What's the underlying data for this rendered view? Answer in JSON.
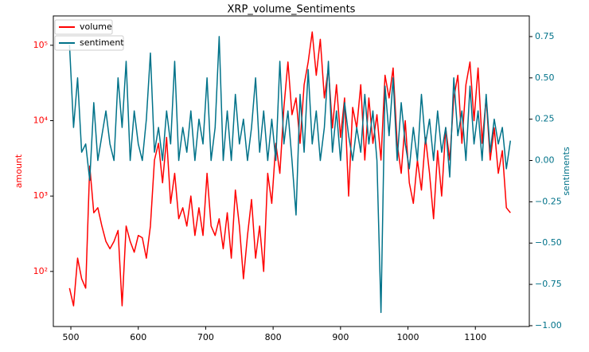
{
  "chart_data": {
    "type": "line",
    "title": "XRP_volume_Sentiments",
    "ylabel": "amount",
    "y2label": "sentiments",
    "yscale": "log",
    "grid": false,
    "legend": "upper left",
    "x": [
      498,
      504,
      510,
      516,
      522,
      528,
      534,
      540,
      546,
      552,
      558,
      564,
      570,
      576,
      582,
      588,
      594,
      600,
      606,
      612,
      618,
      624,
      630,
      636,
      642,
      648,
      654,
      660,
      666,
      672,
      678,
      684,
      690,
      696,
      702,
      708,
      714,
      720,
      726,
      732,
      738,
      744,
      750,
      756,
      762,
      768,
      774,
      780,
      786,
      792,
      798,
      804,
      810,
      816,
      822,
      828,
      834,
      840,
      846,
      852,
      858,
      864,
      870,
      876,
      882,
      888,
      894,
      900,
      906,
      912,
      918,
      924,
      930,
      936,
      942,
      948,
      954,
      960,
      966,
      972,
      978,
      984,
      990,
      996,
      1002,
      1008,
      1014,
      1020,
      1026,
      1032,
      1038,
      1044,
      1050,
      1056,
      1062,
      1068,
      1074,
      1080,
      1086,
      1092,
      1098,
      1104,
      1110,
      1116,
      1122,
      1128,
      1134,
      1140,
      1146,
      1152
    ],
    "series": [
      {
        "name": "volume",
        "color": "#ff0000",
        "values": [
          60,
          35,
          150,
          80,
          60,
          2500,
          600,
          700,
          400,
          250,
          200,
          250,
          350,
          35,
          400,
          250,
          180,
          300,
          280,
          150,
          400,
          3000,
          5000,
          1500,
          6000,
          800,
          2000,
          500,
          700,
          400,
          1000,
          300,
          700,
          300,
          2000,
          400,
          300,
          500,
          200,
          600,
          150,
          1200,
          400,
          80,
          300,
          900,
          150,
          400,
          100,
          2000,
          800,
          5000,
          2000,
          15000,
          60000,
          12000,
          20000,
          5000,
          30000,
          60000,
          150000,
          40000,
          120000,
          20000,
          50000,
          8000,
          30000,
          6000,
          20000,
          1000,
          15000,
          8000,
          30000,
          3000,
          20000,
          5000,
          12000,
          3000,
          40000,
          20000,
          50000,
          5000,
          2000,
          10000,
          1500,
          800,
          3000,
          1200,
          6000,
          2000,
          500,
          4000,
          1000,
          8000,
          3000,
          20000,
          40000,
          5000,
          30000,
          60000,
          10000,
          50000,
          5000,
          20000,
          3000,
          8000,
          2000,
          4000,
          700,
          600
        ]
      },
      {
        "name": "sentiment",
        "color": "#007289",
        "axis": "y2",
        "values": [
          0.7,
          0.2,
          0.5,
          0.05,
          0.1,
          -0.12,
          0.35,
          0.0,
          0.15,
          0.3,
          0.1,
          0.0,
          0.5,
          0.2,
          0.6,
          0.0,
          0.3,
          0.1,
          0.0,
          0.25,
          0.65,
          0.05,
          0.2,
          0.0,
          0.3,
          0.1,
          0.6,
          0.0,
          0.2,
          0.05,
          0.3,
          0.0,
          0.25,
          0.1,
          0.5,
          0.0,
          0.2,
          0.75,
          0.0,
          0.3,
          0.0,
          0.4,
          0.1,
          0.25,
          0.0,
          0.2,
          0.5,
          0.05,
          0.3,
          0.0,
          0.25,
          0.0,
          0.6,
          0.1,
          0.3,
          0.0,
          -0.33,
          0.4,
          0.05,
          0.55,
          0.1,
          0.3,
          0.0,
          0.2,
          0.6,
          0.05,
          0.3,
          0.0,
          0.35,
          0.15,
          0.0,
          0.2,
          0.05,
          0.4,
          0.1,
          0.3,
          0.0,
          -0.92,
          0.45,
          0.15,
          0.5,
          0.0,
          0.35,
          0.1,
          -0.05,
          0.2,
          0.0,
          0.4,
          0.1,
          0.25,
          0.0,
          0.3,
          0.05,
          0.2,
          -0.1,
          0.5,
          0.15,
          0.3,
          0.0,
          0.45,
          0.1,
          0.3,
          0.0,
          0.4,
          0.05,
          0.25,
          0.1,
          0.2,
          -0.05,
          0.12
        ]
      }
    ],
    "xlim": [
      474,
      1180
    ],
    "xticks": [
      500,
      600,
      700,
      800,
      900,
      1000,
      1100
    ],
    "ylim": [
      18.6,
      245000
    ],
    "yticks": [
      {
        "value": 100,
        "label": "10²"
      },
      {
        "value": 1000,
        "label": "10³"
      },
      {
        "value": 10000,
        "label": "10⁴"
      },
      {
        "value": 100000,
        "label": "10⁵"
      }
    ],
    "y2lim": [
      -1.005,
      0.875
    ],
    "y2ticks": [
      {
        "value": -1,
        "label": "−1.00"
      },
      {
        "value": -0.75,
        "label": "−0.75"
      },
      {
        "value": -0.5,
        "label": "−0.50"
      },
      {
        "value": -0.25,
        "label": "−0.25"
      },
      {
        "value": 0,
        "label": "0.00"
      },
      {
        "value": 0.25,
        "label": "0.25"
      },
      {
        "value": 0.5,
        "label": "0.50"
      },
      {
        "value": 0.75,
        "label": "0.75"
      }
    ]
  }
}
